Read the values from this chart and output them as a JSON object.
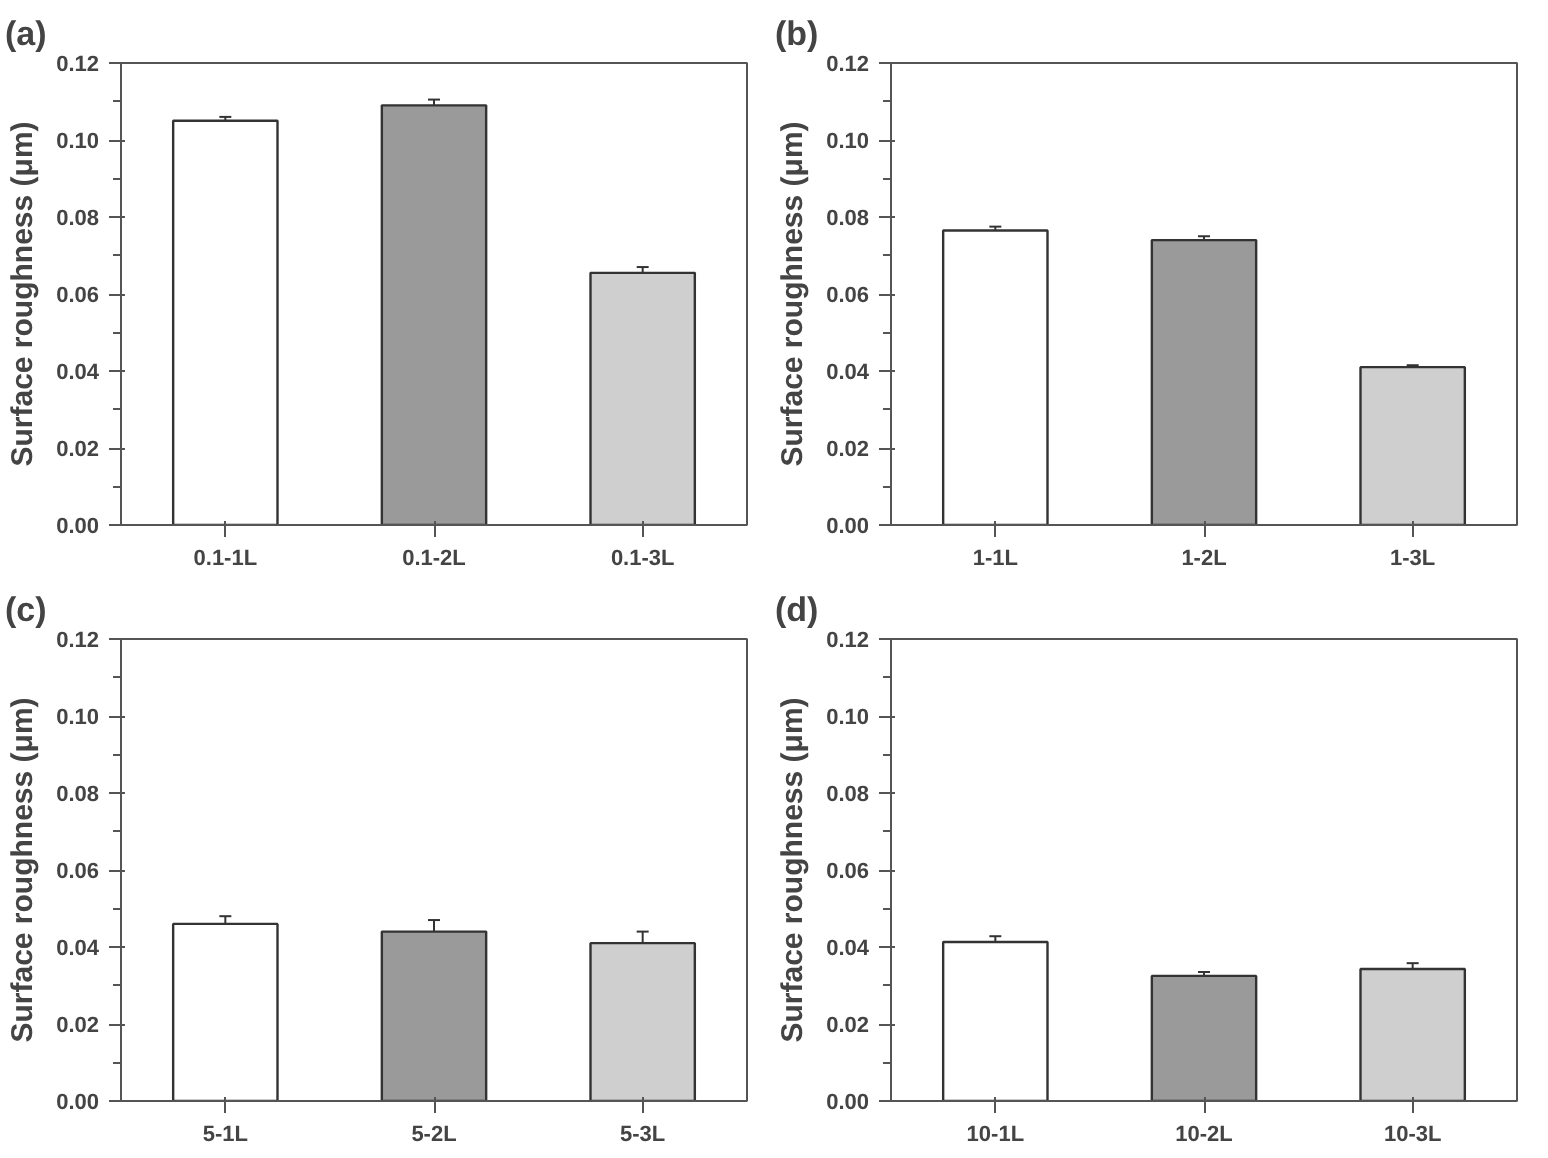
{
  "chart_data": [
    {
      "type": "bar",
      "title": "(a)",
      "ylabel": "Surface roughness (μm)",
      "categories": [
        "0.1-1L",
        "0.1-2L",
        "0.1-3L"
      ],
      "values": [
        0.105,
        0.109,
        0.0655
      ],
      "errors": [
        0.001,
        0.0015,
        0.0015
      ],
      "colors": [
        "#ffffff",
        "#9a9a9a",
        "#cfcfcf"
      ],
      "ylim": [
        0,
        0.12
      ],
      "yticks": [
        {
          "value": 0,
          "label": "0.00"
        },
        {
          "value": 0.02,
          "label": "0.02"
        },
        {
          "value": 0.04,
          "label": "0.04"
        },
        {
          "value": 0.06,
          "label": "0.06"
        },
        {
          "value": 0.08,
          "label": "0.08"
        },
        {
          "value": 0.1,
          "label": "0.10"
        },
        {
          "value": 0.12,
          "label": "0.12"
        }
      ],
      "grid": false,
      "legend": false
    },
    {
      "type": "bar",
      "title": "(b)",
      "ylabel": "Surface roughness (μm)",
      "categories": [
        "1-1L",
        "1-2L",
        "1-3L"
      ],
      "values": [
        0.0765,
        0.074,
        0.041
      ],
      "errors": [
        0.001,
        0.001,
        0.0005
      ],
      "colors": [
        "#ffffff",
        "#9a9a9a",
        "#cfcfcf"
      ],
      "ylim": [
        0,
        0.12
      ],
      "yticks": [
        {
          "value": 0,
          "label": "0.00"
        },
        {
          "value": 0.02,
          "label": "0.02"
        },
        {
          "value": 0.04,
          "label": "0.04"
        },
        {
          "value": 0.06,
          "label": "0.06"
        },
        {
          "value": 0.08,
          "label": "0.08"
        },
        {
          "value": 0.1,
          "label": "0.10"
        },
        {
          "value": 0.12,
          "label": "0.12"
        }
      ],
      "grid": false,
      "legend": false
    },
    {
      "type": "bar",
      "title": "(c)",
      "ylabel": "Surface roughness (μm)",
      "categories": [
        "5-1L",
        "5-2L",
        "5-3L"
      ],
      "values": [
        0.046,
        0.044,
        0.041
      ],
      "errors": [
        0.002,
        0.003,
        0.003
      ],
      "colors": [
        "#ffffff",
        "#9a9a9a",
        "#cfcfcf"
      ],
      "ylim": [
        0,
        0.12
      ],
      "yticks": [
        {
          "value": 0,
          "label": "0.00"
        },
        {
          "value": 0.02,
          "label": "0.02"
        },
        {
          "value": 0.04,
          "label": "0.04"
        },
        {
          "value": 0.06,
          "label": "0.06"
        },
        {
          "value": 0.08,
          "label": "0.08"
        },
        {
          "value": 0.1,
          "label": "0.10"
        },
        {
          "value": 0.12,
          "label": "0.12"
        }
      ],
      "grid": false,
      "legend": false
    },
    {
      "type": "bar",
      "title": "(d)",
      "ylabel": "Surface roughness (μm)",
      "categories": [
        "10-1L",
        "10-2L",
        "10-3L"
      ],
      "values": [
        0.0413,
        0.0325,
        0.0343
      ],
      "errors": [
        0.0015,
        0.001,
        0.0015
      ],
      "colors": [
        "#ffffff",
        "#9a9a9a",
        "#cfcfcf"
      ],
      "ylim": [
        0,
        0.12
      ],
      "yticks": [
        {
          "value": 0,
          "label": "0.00"
        },
        {
          "value": 0.02,
          "label": "0.02"
        },
        {
          "value": 0.04,
          "label": "0.04"
        },
        {
          "value": 0.06,
          "label": "0.06"
        },
        {
          "value": 0.08,
          "label": "0.08"
        },
        {
          "value": 0.1,
          "label": "0.10"
        },
        {
          "value": 0.12,
          "label": "0.12"
        }
      ],
      "grid": false,
      "legend": false
    }
  ]
}
